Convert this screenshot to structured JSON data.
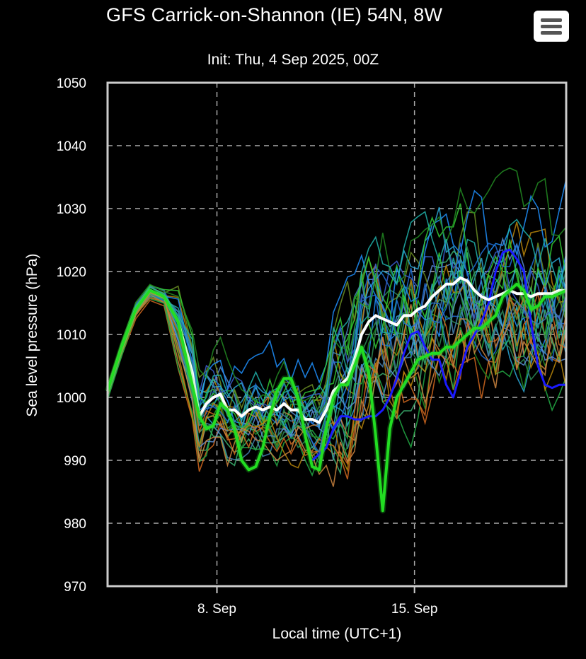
{
  "header": {
    "title": "GFS Carrick-on-Shannon (IE) 54N, 8W",
    "subtitle": "Init: Thu, 4 Sep 2025, 00Z",
    "menu_icon": "hamburger-menu-icon"
  },
  "chart_data": {
    "type": "line",
    "title": "GFS Carrick-on-Shannon (IE) 54N, 8W",
    "subtitle": "Init: Thu, 4 Sep 2025, 00Z",
    "xlabel": "Local time (UTC+1)",
    "ylabel": "Sea level pressure (hPa)",
    "xlim": [
      0,
      16.25
    ],
    "ylim": [
      970,
      1050
    ],
    "yticks": [
      970,
      980,
      990,
      1000,
      1010,
      1020,
      1030,
      1040,
      1050
    ],
    "xticks": [
      {
        "label": "8. Sep",
        "value": 3.875
      },
      {
        "label": "15. Sep",
        "value": 10.875
      }
    ],
    "grid": true,
    "legend": "none",
    "series_style": {
      "mean": {
        "color": "#ffffff",
        "width": 4
      },
      "control": {
        "color": "#22dd22",
        "width": 4
      },
      "operational": {
        "color": "#1a1aff",
        "width": 3
      }
    },
    "series": [
      {
        "role": "mean",
        "values": [
          [
            0,
            1001
          ],
          [
            0.5,
            1008
          ],
          [
            1,
            1014
          ],
          [
            1.5,
            1017
          ],
          [
            2,
            1016
          ],
          [
            2.5,
            1012
          ],
          [
            3,
            1004
          ],
          [
            3.25,
            997
          ],
          [
            3.5,
            999
          ],
          [
            3.75,
            1000
          ],
          [
            4,
            1000.5
          ],
          [
            4.25,
            998
          ],
          [
            4.5,
            998
          ],
          [
            4.75,
            997
          ],
          [
            5,
            998
          ],
          [
            5.25,
            998.5
          ],
          [
            5.5,
            998
          ],
          [
            5.75,
            998.5
          ],
          [
            6,
            998
          ],
          [
            6.25,
            999
          ],
          [
            6.5,
            998
          ],
          [
            6.75,
            998
          ],
          [
            7,
            996.5
          ],
          [
            7.25,
            996.5
          ],
          [
            7.5,
            996
          ],
          [
            7.75,
            998
          ],
          [
            8,
            1001
          ],
          [
            8.25,
            1002
          ],
          [
            8.5,
            1003
          ],
          [
            8.75,
            1006
          ],
          [
            9,
            1010
          ],
          [
            9.25,
            1012
          ],
          [
            9.5,
            1013
          ],
          [
            9.75,
            1012.5
          ],
          [
            10,
            1012
          ],
          [
            10.25,
            1011.5
          ],
          [
            10.5,
            1013
          ],
          [
            10.75,
            1013
          ],
          [
            11,
            1014
          ],
          [
            11.25,
            1014.5
          ],
          [
            11.5,
            1016
          ],
          [
            11.75,
            1017
          ],
          [
            12,
            1018
          ],
          [
            12.25,
            1018
          ],
          [
            12.5,
            1019
          ],
          [
            12.75,
            1018.5
          ],
          [
            13,
            1017
          ],
          [
            13.25,
            1016
          ],
          [
            13.5,
            1015.5
          ],
          [
            13.75,
            1016
          ],
          [
            14,
            1016.5
          ],
          [
            14.25,
            1017
          ],
          [
            14.5,
            1016.5
          ],
          [
            14.75,
            1016.5
          ],
          [
            15,
            1016
          ],
          [
            15.25,
            1016.5
          ],
          [
            15.5,
            1016.5
          ],
          [
            15.75,
            1016.5
          ],
          [
            16,
            1017
          ],
          [
            16.25,
            1017
          ]
        ]
      },
      {
        "role": "control",
        "values": [
          [
            0,
            1001
          ],
          [
            0.5,
            1008
          ],
          [
            1,
            1014
          ],
          [
            1.5,
            1017
          ],
          [
            2,
            1016
          ],
          [
            2.5,
            1012
          ],
          [
            3,
            1002
          ],
          [
            3.25,
            997
          ],
          [
            3.5,
            995
          ],
          [
            3.75,
            995.5
          ],
          [
            4,
            999
          ],
          [
            4.25,
            998
          ],
          [
            4.5,
            995
          ],
          [
            4.75,
            990
          ],
          [
            5,
            988.5
          ],
          [
            5.25,
            989
          ],
          [
            5.5,
            992
          ],
          [
            5.75,
            997
          ],
          [
            6,
            1001
          ],
          [
            6.25,
            1003
          ],
          [
            6.5,
            1003
          ],
          [
            6.75,
            1000
          ],
          [
            7,
            994
          ],
          [
            7.25,
            989
          ],
          [
            7.5,
            988.5
          ],
          [
            7.75,
            995
          ],
          [
            8,
            1000
          ],
          [
            8.25,
            1002
          ],
          [
            8.5,
            1002
          ],
          [
            8.75,
            1005
          ],
          [
            9,
            1008
          ],
          [
            9.25,
            1004
          ],
          [
            9.5,
            994
          ],
          [
            9.75,
            982
          ],
          [
            10,
            995
          ],
          [
            10.25,
            1000
          ],
          [
            10.5,
            1002
          ],
          [
            10.75,
            1004
          ],
          [
            11,
            1006
          ],
          [
            11.25,
            1006.5
          ],
          [
            11.5,
            1007
          ],
          [
            11.75,
            1007
          ],
          [
            12,
            1008
          ],
          [
            12.25,
            1008
          ],
          [
            12.5,
            1009
          ],
          [
            12.75,
            1010
          ],
          [
            13,
            1011
          ],
          [
            13.25,
            1011
          ],
          [
            13.5,
            1012
          ],
          [
            13.75,
            1013
          ],
          [
            14,
            1016
          ],
          [
            14.25,
            1017
          ],
          [
            14.5,
            1018
          ],
          [
            14.75,
            1017
          ],
          [
            15,
            1014
          ],
          [
            15.25,
            1014.5
          ],
          [
            15.5,
            1016
          ],
          [
            15.75,
            1016
          ],
          [
            16,
            1016.5
          ],
          [
            16.25,
            1017
          ]
        ]
      },
      {
        "role": "operational",
        "values": [
          [
            7.25,
            990
          ],
          [
            7.5,
            991
          ],
          [
            7.75,
            992
          ],
          [
            8,
            995
          ],
          [
            8.25,
            997
          ],
          [
            8.5,
            997
          ],
          [
            8.75,
            996.5
          ],
          [
            9,
            996.5
          ],
          [
            9.25,
            997
          ],
          [
            9.5,
            997
          ],
          [
            9.75,
            998
          ],
          [
            10,
            1000
          ],
          [
            10.25,
            1003
          ],
          [
            10.5,
            1007
          ],
          [
            10.75,
            1010
          ],
          [
            11,
            1010.5
          ],
          [
            11.25,
            1008
          ],
          [
            11.5,
            1006
          ],
          [
            11.75,
            1006
          ],
          [
            12,
            1002
          ],
          [
            12.25,
            1000
          ],
          [
            12.5,
            1004
          ],
          [
            12.75,
            1008
          ],
          [
            13,
            1010
          ],
          [
            13.25,
            1012
          ],
          [
            13.5,
            1015
          ],
          [
            13.75,
            1020
          ],
          [
            14,
            1023
          ],
          [
            14.25,
            1023.5
          ],
          [
            14.5,
            1022
          ],
          [
            14.75,
            1020
          ],
          [
            15,
            1012
          ],
          [
            15.25,
            1005
          ],
          [
            15.5,
            1002
          ],
          [
            15.75,
            1001.5
          ],
          [
            16,
            1002
          ],
          [
            16.25,
            1002
          ]
        ]
      }
    ]
  }
}
